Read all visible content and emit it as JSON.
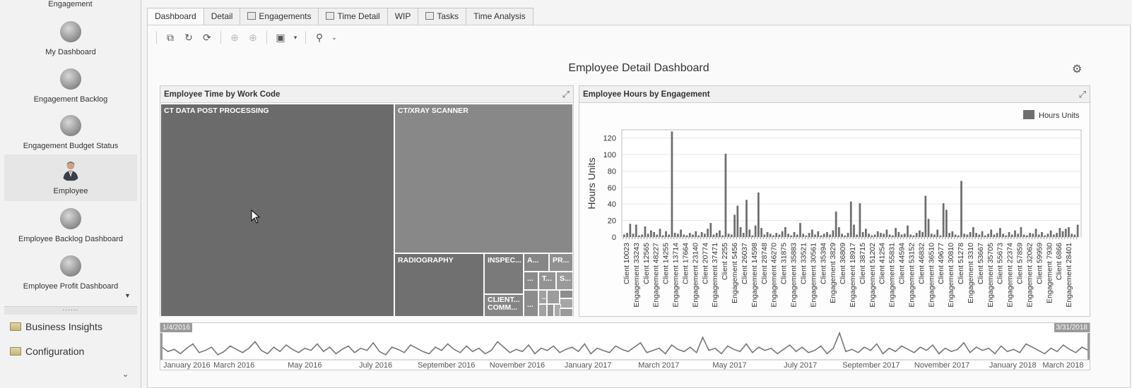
{
  "sidebar": {
    "top_partial_label": "Engagement",
    "items": [
      {
        "label": "My Dashboard",
        "icon": "chart-icon"
      },
      {
        "label": "Engagement Backlog",
        "icon": "engagement-backlog-icon"
      },
      {
        "label": "Engagement Budget Status",
        "icon": "budget-status-icon"
      },
      {
        "label": "Employee",
        "icon": "employee-icon",
        "selected": true
      },
      {
        "label": "Employee Backlog Dashboard",
        "icon": "employee-backlog-icon"
      },
      {
        "label": "Employee Profit Dashboard",
        "icon": "employee-profit-icon"
      }
    ],
    "groups": [
      {
        "label": "Business Insights",
        "icon": "folder-icon"
      },
      {
        "label": "Configuration",
        "icon": "folder-icon"
      }
    ]
  },
  "tabs": [
    {
      "label": "Dashboard",
      "active": true,
      "icon": ""
    },
    {
      "label": "Detail",
      "icon": ""
    },
    {
      "label": "Engagements",
      "icon": "engagements-icon"
    },
    {
      "label": "Time Detail",
      "icon": "time-detail-icon"
    },
    {
      "label": "WIP",
      "icon": ""
    },
    {
      "label": "Tasks",
      "icon": "tasks-icon"
    },
    {
      "label": "Time Analysis",
      "icon": ""
    }
  ],
  "dashboard": {
    "title": "Employee Detail Dashboard",
    "treemap": {
      "title": "Employee Time by Work Code",
      "cells": [
        {
          "label": "CT DATA POST PROCESSING",
          "color": "#6b6b6b"
        },
        {
          "label": "CT/XRAY SCANNER",
          "color": "#888888"
        },
        {
          "label": "RADIOGRAPHY",
          "color": "#707070"
        },
        {
          "label": "INSPEC...",
          "color": "#7a7a7a"
        },
        {
          "label": "A...",
          "color": "#868686"
        },
        {
          "label": "PR...",
          "color": "#909090"
        },
        {
          "label": "...",
          "color": "#8a8a8a"
        },
        {
          "label": "T...",
          "color": "#939393"
        },
        {
          "label": "S...",
          "color": "#9a9a9a"
        },
        {
          "label": "CLIENT... COMM...",
          "color": "#858585"
        },
        {
          "label": "...",
          "color": "#8c8c8c"
        },
        {
          "label": "..",
          "color": "#a0a0a0"
        }
      ]
    },
    "bar_chart": {
      "title": "Employee Hours by Engagement",
      "chart_data": {
        "type": "bar",
        "ylabel": "Hours Units",
        "legend": "Hours Units",
        "legend_position": "top-right",
        "ylim": [
          0,
          130
        ],
        "yticks": [
          0,
          20,
          40,
          60,
          80,
          100,
          120
        ],
        "series_color": "#6e6e6e",
        "x_labels": [
          "Client 10023",
          "Engagement 33243",
          "Client 12565",
          "Engagement 48227",
          "Client 14255",
          "Engagement 13714",
          "Client 17664",
          "Engagement 23140",
          "Client 20774",
          "Engagement 37471",
          "Client 2255",
          "Engagement 5456",
          "Client 26037",
          "Engagement 14598",
          "Client 28748",
          "Engagement 46270",
          "Client 31875",
          "Engagement 35883",
          "Client 33521",
          "Engagement 30561",
          "Client 35394",
          "Engagement 3829",
          "Client 36809",
          "Engagement 18917",
          "Client 38715",
          "Engagement 51202",
          "Client 41254",
          "Engagement 55831",
          "Client 44594",
          "Engagement 53152",
          "Client 46832",
          "Engagement 36510",
          "Client 49677",
          "Engagement 30810",
          "Client 51278",
          "Engagement 3310",
          "Client 53667",
          "Engagement 35705",
          "Client 55673",
          "Engagement 22374",
          "Client 57859",
          "Engagement 32062",
          "Client 59959",
          "Engagement 7930",
          "Client 6866",
          "Engagement 28401"
        ],
        "values": [
          3,
          5,
          16,
          4,
          15,
          2,
          3,
          13,
          4,
          8,
          6,
          3,
          10,
          2,
          7,
          3,
          128,
          5,
          4,
          9,
          3,
          2,
          5,
          3,
          7,
          2,
          6,
          4,
          10,
          17,
          3,
          5,
          8,
          2,
          101,
          4,
          3,
          27,
          38,
          12,
          5,
          45,
          9,
          2,
          14,
          54,
          11,
          3,
          6,
          4,
          2,
          5,
          3,
          7,
          12,
          4,
          2,
          6,
          3,
          17,
          4,
          2,
          5,
          9,
          3,
          7,
          2,
          4,
          6,
          3,
          8,
          31,
          12,
          4,
          2,
          5,
          43,
          15,
          3,
          41,
          6,
          10,
          4,
          2,
          3,
          7,
          5,
          4,
          9,
          3,
          2,
          11,
          6,
          3,
          4,
          14,
          3,
          2,
          5,
          8,
          6,
          50,
          22,
          4,
          3,
          9,
          2,
          41,
          33,
          5,
          7,
          3,
          2,
          68,
          4,
          3,
          6,
          12,
          5,
          3,
          7,
          2,
          4,
          9,
          3,
          5,
          11,
          4,
          2,
          6,
          3,
          8,
          4,
          12,
          3,
          2,
          5,
          4,
          10,
          3,
          6,
          2,
          4,
          8,
          3,
          5,
          11,
          7,
          10,
          12,
          4,
          3,
          15
        ]
      }
    },
    "range_selector": {
      "start_label": "1/4/2016",
      "end_label": "3/31/2018",
      "axis_labels": [
        "January 2016",
        "March 2016",
        "May 2016",
        "July 2016",
        "September 2016",
        "November 2016",
        "January 2017",
        "March 2017",
        "May 2017",
        "July 2017",
        "September 2017",
        "November 2017",
        "January 2018",
        "March 2018"
      ],
      "series_values": [
        9,
        5,
        7,
        3,
        8,
        12,
        4,
        6,
        9,
        2,
        5,
        10,
        7,
        4,
        8,
        14,
        6,
        3,
        9,
        5,
        11,
        7,
        4,
        8,
        6,
        12,
        5,
        9,
        3,
        7,
        10,
        4,
        8,
        6,
        13,
        5,
        2,
        9,
        7,
        4,
        11,
        8,
        5,
        3,
        9,
        6,
        12,
        7,
        4,
        10,
        5,
        8,
        3,
        6,
        14,
        9,
        4,
        7,
        5,
        11,
        3,
        8,
        6,
        10,
        4,
        7,
        9,
        5,
        12,
        3,
        8,
        6,
        4,
        10,
        7,
        5,
        9,
        13,
        4,
        6,
        8,
        3,
        11,
        7,
        5,
        9,
        4,
        18,
        6,
        8,
        3,
        10,
        7,
        5,
        12,
        4,
        9,
        6,
        8,
        3,
        7,
        11,
        5,
        9,
        4,
        6,
        10,
        3,
        8,
        22,
        5,
        7,
        4,
        9,
        6,
        12,
        3,
        8,
        5,
        10,
        7,
        4,
        9,
        6,
        11,
        3,
        8,
        5,
        7,
        13,
        4,
        9,
        6,
        8,
        3,
        10,
        5,
        7,
        4,
        12,
        9,
        6,
        3,
        8,
        5,
        11,
        7,
        4,
        9,
        6
      ]
    }
  }
}
